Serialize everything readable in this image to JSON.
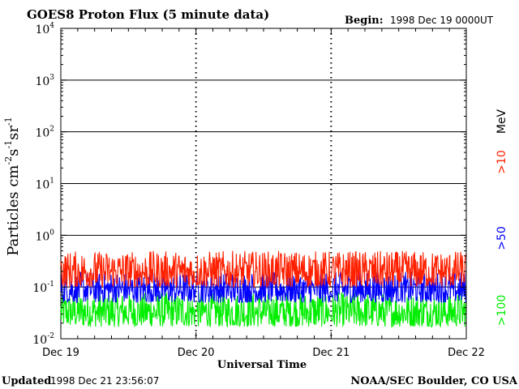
{
  "header": {
    "title": "GOES8 Proton Flux (5 minute data)",
    "begin_label": "Begin:",
    "begin_value": "1998 Dec 19 0000UT"
  },
  "footer": {
    "updated_label": "Updated",
    "updated_value": "1998 Dec 21 23:56:07",
    "credit": "NOAA/SEC Boulder, CO USA"
  },
  "chart_data": {
    "type": "line",
    "title": "GOES8 Proton Flux (5 minute data)",
    "xlabel": "Universal Time",
    "ylabel": "Particles cm-2 s-1 sr-1",
    "y_scale": "log",
    "ylim": [
      0.01,
      10000
    ],
    "y_ticks": [
      {
        "base": "10",
        "exp": "-2"
      },
      {
        "base": "10",
        "exp": "-1"
      },
      {
        "base": "10",
        "exp": "0"
      },
      {
        "base": "10",
        "exp": "1"
      },
      {
        "base": "10",
        "exp": "2"
      },
      {
        "base": "10",
        "exp": "3"
      },
      {
        "base": "10",
        "exp": "4"
      }
    ],
    "x_ticks": [
      "Dec 19",
      "Dec 20",
      "Dec 21",
      "Dec 22"
    ],
    "grid": "horizontal at decades",
    "legend_placement": "right, vertical",
    "legend_unit": "MeV",
    "series": [
      {
        "name": ">10",
        "color": "#ff2000",
        "typical_low": 0.1,
        "typical_high": 0.5,
        "values_summary": "noisy background ~0.1–0.6"
      },
      {
        "name": ">50",
        "color": "#0000ff",
        "typical_low": 0.05,
        "typical_high": 0.2,
        "values_summary": "noisy background ~0.04–0.22"
      },
      {
        "name": ">100",
        "color": "#00ee00",
        "typical_low": 0.017,
        "typical_high": 0.08,
        "values_summary": "noisy background ~0.017–0.09"
      }
    ]
  }
}
